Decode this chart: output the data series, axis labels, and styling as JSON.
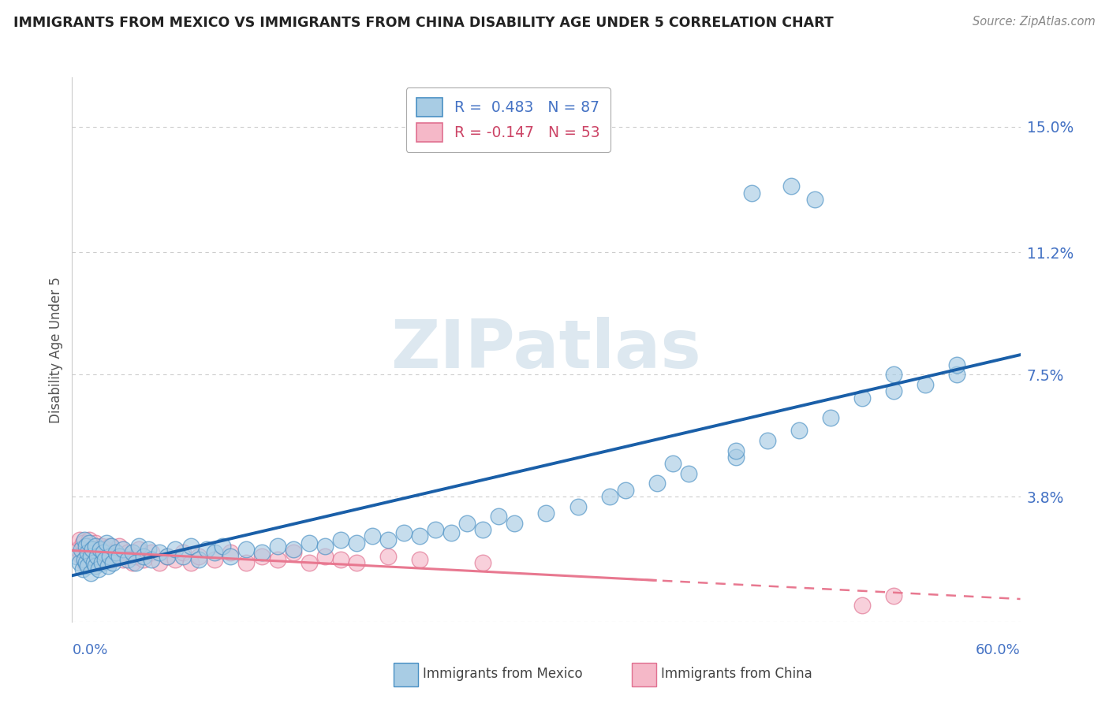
{
  "title": "IMMIGRANTS FROM MEXICO VS IMMIGRANTS FROM CHINA DISABILITY AGE UNDER 5 CORRELATION CHART",
  "source": "Source: ZipAtlas.com",
  "ylabel": "Disability Age Under 5",
  "yticks": [
    0.0,
    0.038,
    0.075,
    0.112,
    0.15
  ],
  "ytick_labels": [
    "",
    "3.8%",
    "7.5%",
    "11.2%",
    "15.0%"
  ],
  "xlim": [
    0.0,
    0.6
  ],
  "ylim": [
    0.0,
    0.165
  ],
  "legend_mexico": "R =  0.483   N = 87",
  "legend_china": "R = -0.147   N = 53",
  "mexico_face_color": "#a8cce4",
  "mexico_edge_color": "#4a90c4",
  "china_face_color": "#f5b8c8",
  "china_edge_color": "#e07090",
  "mexico_line_color": "#1a5fa8",
  "china_line_color": "#e87890",
  "grid_color": "#cccccc",
  "background_color": "#ffffff",
  "watermark_color": "#dde8f0",
  "title_color": "#222222",
  "source_color": "#888888",
  "axis_tick_color": "#4472c4",
  "ylabel_color": "#555555",
  "legend_text_mexico_color": "#4472c4",
  "legend_text_china_color": "#cc4466",
  "bottom_label_color": "#444444",
  "mexico_x": [
    0.003,
    0.005,
    0.006,
    0.007,
    0.008,
    0.008,
    0.009,
    0.009,
    0.01,
    0.01,
    0.011,
    0.012,
    0.012,
    0.013,
    0.014,
    0.015,
    0.015,
    0.016,
    0.017,
    0.018,
    0.019,
    0.02,
    0.021,
    0.022,
    0.023,
    0.024,
    0.025,
    0.026,
    0.028,
    0.03,
    0.032,
    0.035,
    0.038,
    0.04,
    0.042,
    0.045,
    0.048,
    0.05,
    0.055,
    0.06,
    0.065,
    0.07,
    0.075,
    0.08,
    0.085,
    0.09,
    0.095,
    0.1,
    0.11,
    0.12,
    0.13,
    0.14,
    0.15,
    0.16,
    0.17,
    0.18,
    0.19,
    0.2,
    0.21,
    0.22,
    0.23,
    0.24,
    0.25,
    0.26,
    0.27,
    0.28,
    0.3,
    0.32,
    0.34,
    0.35,
    0.37,
    0.39,
    0.42,
    0.44,
    0.46,
    0.48,
    0.5,
    0.52,
    0.54,
    0.56,
    0.43,
    0.455,
    0.47,
    0.38,
    0.42,
    0.52,
    0.56
  ],
  "mexico_y": [
    0.02,
    0.018,
    0.022,
    0.016,
    0.025,
    0.019,
    0.023,
    0.018,
    0.021,
    0.017,
    0.024,
    0.02,
    0.015,
    0.022,
    0.018,
    0.023,
    0.017,
    0.02,
    0.016,
    0.022,
    0.018,
    0.021,
    0.019,
    0.024,
    0.017,
    0.02,
    0.023,
    0.018,
    0.021,
    0.02,
    0.022,
    0.019,
    0.021,
    0.018,
    0.023,
    0.02,
    0.022,
    0.019,
    0.021,
    0.02,
    0.022,
    0.02,
    0.023,
    0.019,
    0.022,
    0.021,
    0.023,
    0.02,
    0.022,
    0.021,
    0.023,
    0.022,
    0.024,
    0.023,
    0.025,
    0.024,
    0.026,
    0.025,
    0.027,
    0.026,
    0.028,
    0.027,
    0.03,
    0.028,
    0.032,
    0.03,
    0.033,
    0.035,
    0.038,
    0.04,
    0.042,
    0.045,
    0.05,
    0.055,
    0.058,
    0.062,
    0.068,
    0.07,
    0.072,
    0.075,
    0.13,
    0.132,
    0.128,
    0.048,
    0.052,
    0.075,
    0.078
  ],
  "china_x": [
    0.004,
    0.005,
    0.006,
    0.007,
    0.008,
    0.009,
    0.01,
    0.011,
    0.012,
    0.013,
    0.014,
    0.015,
    0.016,
    0.017,
    0.018,
    0.019,
    0.02,
    0.021,
    0.022,
    0.023,
    0.024,
    0.025,
    0.026,
    0.028,
    0.03,
    0.032,
    0.035,
    0.038,
    0.04,
    0.042,
    0.045,
    0.05,
    0.055,
    0.06,
    0.065,
    0.07,
    0.075,
    0.08,
    0.09,
    0.1,
    0.11,
    0.12,
    0.13,
    0.14,
    0.15,
    0.16,
    0.17,
    0.18,
    0.2,
    0.22,
    0.26,
    0.5,
    0.52
  ],
  "china_y": [
    0.022,
    0.025,
    0.02,
    0.024,
    0.018,
    0.022,
    0.02,
    0.025,
    0.018,
    0.022,
    0.02,
    0.024,
    0.018,
    0.022,
    0.019,
    0.023,
    0.02,
    0.022,
    0.019,
    0.021,
    0.023,
    0.019,
    0.021,
    0.02,
    0.023,
    0.019,
    0.021,
    0.018,
    0.02,
    0.022,
    0.019,
    0.021,
    0.018,
    0.02,
    0.019,
    0.021,
    0.018,
    0.02,
    0.019,
    0.021,
    0.018,
    0.02,
    0.019,
    0.021,
    0.018,
    0.02,
    0.019,
    0.018,
    0.02,
    0.019,
    0.018,
    0.005,
    0.008
  ]
}
